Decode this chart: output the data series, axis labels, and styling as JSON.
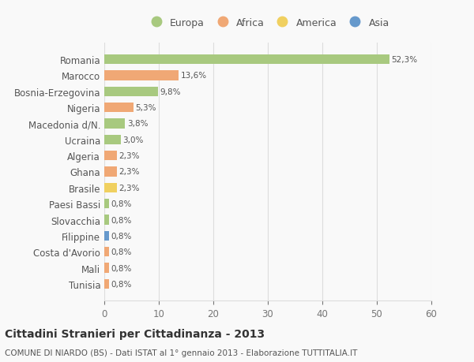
{
  "countries": [
    "Romania",
    "Marocco",
    "Bosnia-Erzegovina",
    "Nigeria",
    "Macedonia d/N.",
    "Ucraina",
    "Algeria",
    "Ghana",
    "Brasile",
    "Paesi Bassi",
    "Slovacchia",
    "Filippine",
    "Costa d'Avorio",
    "Mali",
    "Tunisia"
  ],
  "values": [
    52.3,
    13.6,
    9.8,
    5.3,
    3.8,
    3.0,
    2.3,
    2.3,
    2.3,
    0.8,
    0.8,
    0.8,
    0.8,
    0.8,
    0.8
  ],
  "labels": [
    "52,3%",
    "13,6%",
    "9,8%",
    "5,3%",
    "3,8%",
    "3,0%",
    "2,3%",
    "2,3%",
    "2,3%",
    "0,8%",
    "0,8%",
    "0,8%",
    "0,8%",
    "0,8%",
    "0,8%"
  ],
  "colors": [
    "#a8c97f",
    "#f0a875",
    "#a8c97f",
    "#f0a875",
    "#a8c97f",
    "#a8c97f",
    "#f0a875",
    "#f0a875",
    "#f0d060",
    "#a8c97f",
    "#a8c97f",
    "#6699cc",
    "#f0a875",
    "#f0a875",
    "#f0a875"
  ],
  "legend_labels": [
    "Europa",
    "Africa",
    "America",
    "Asia"
  ],
  "legend_colors": [
    "#a8c97f",
    "#f0a875",
    "#f0d060",
    "#6699cc"
  ],
  "title": "Cittadini Stranieri per Cittadinanza - 2013",
  "subtitle": "COMUNE DI NIARDO (BS) - Dati ISTAT al 1° gennaio 2013 - Elaborazione TUTTITALIA.IT",
  "xlim": [
    0,
    60
  ],
  "xticks": [
    0,
    10,
    20,
    30,
    40,
    50,
    60
  ],
  "bg_color": "#f9f9f9",
  "grid_color": "#dddddd",
  "bar_height": 0.6
}
